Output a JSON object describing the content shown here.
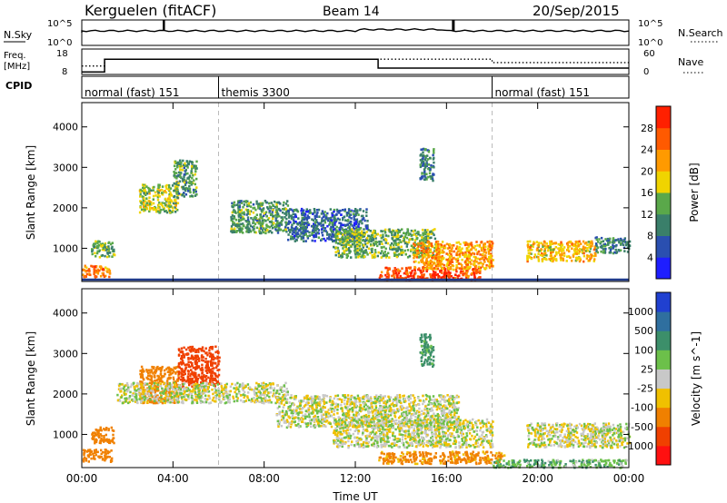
{
  "header": {
    "station": "Kerguelen (fitACF)",
    "beam": "Beam 14",
    "date": "20/Sep/2015"
  },
  "nsky_panel": {
    "left_label": "N.Sky",
    "left_ticks": [
      "10^5",
      "10^0"
    ],
    "right_label": "N.Search",
    "right_ticks": [
      "10^5",
      "10^0"
    ]
  },
  "freq_panel": {
    "left_label_1": "Freq.",
    "left_label_2": "[MHz]",
    "left_ticks": [
      "18",
      "8"
    ],
    "right_label": "Nave",
    "right_ticks": [
      "60",
      "0"
    ]
  },
  "cpid_panel": {
    "label": "CPID",
    "modes": [
      {
        "name": "normal (fast) 151",
        "start_hour": 0
      },
      {
        "name": "themis 3300",
        "start_hour": 6
      },
      {
        "name": "normal (fast) 151",
        "start_hour": 18
      }
    ]
  },
  "power_panel": {
    "ylabel": "Slant Range [km]",
    "yticks": [
      "1000",
      "2000",
      "3000",
      "4000"
    ],
    "colorbar_label": "Power [dB]",
    "colorbar_ticks": [
      "4",
      "8",
      "12",
      "16",
      "20",
      "24",
      "28"
    ],
    "colorbar_colors": [
      "#1e1eff",
      "#2a4fb0",
      "#3a7f6a",
      "#5aa84a",
      "#f0d400",
      "#ff9a00",
      "#ff5a00",
      "#ff2000"
    ]
  },
  "velocity_panel": {
    "ylabel": "Slant Range [km]",
    "yticks": [
      "1000",
      "2000",
      "3000",
      "4000"
    ],
    "colorbar_label": "Velocity [m s^-1]",
    "colorbar_ticks": [
      "1000",
      "500",
      "100",
      "25",
      "-25",
      "-100",
      "-500",
      "-1000"
    ],
    "colorbar_colors": [
      "#2040d0",
      "#2f6f9f",
      "#3c8f6a",
      "#6cc04a",
      "#c8c8c8",
      "#f0c000",
      "#f08000",
      "#f04000",
      "#ff1010"
    ]
  },
  "time_axis": {
    "ticks": [
      "00:00",
      "04:00",
      "08:00",
      "12:00",
      "16:00",
      "20:00",
      "00:00"
    ],
    "label": "Time UT"
  },
  "chart_data": [
    {
      "type": "line",
      "title": "N.Sky / N.Search",
      "x_range_hours": [
        0,
        24
      ],
      "spikes_hours": [
        3.6,
        16.3
      ],
      "baseline": "near 10^5"
    },
    {
      "type": "line",
      "title": "Freq. / Nave",
      "x_range_hours": [
        0,
        24
      ],
      "freq_steps": [
        {
          "from_hour": 0,
          "to_hour": 1,
          "freq_mhz": 9
        },
        {
          "from_hour": 1,
          "to_hour": 13,
          "freq_mhz": 14
        },
        {
          "from_hour": 13,
          "to_hour": 24,
          "freq_mhz": 10.5
        }
      ],
      "nave_dotted": [
        {
          "from_hour": 0,
          "to_hour": 1,
          "nave": 20
        },
        {
          "from_hour": 1,
          "to_hour": 18,
          "nave": 36
        },
        {
          "from_hour": 18,
          "to_hour": 24,
          "nave": 28
        }
      ]
    },
    {
      "type": "heatmap",
      "title": "Power",
      "xlabel": "Time UT",
      "ylabel": "Slant Range [km]",
      "x_range_hours": [
        0,
        24
      ],
      "ylim_km": [
        180,
        4600
      ],
      "regions_db": [
        {
          "x_hours": [
            0,
            1.2
          ],
          "y_km": [
            300,
            600
          ],
          "power_db": 24
        },
        {
          "x_hours": [
            0.4,
            1.4
          ],
          "y_km": [
            800,
            1200
          ],
          "power_db": 14
        },
        {
          "x_hours": [
            2.5,
            4.2
          ],
          "y_km": [
            1900,
            2600
          ],
          "power_db": 16
        },
        {
          "x_hours": [
            4.0,
            5.0
          ],
          "y_km": [
            2300,
            3200
          ],
          "power_db": 12
        },
        {
          "x_hours": [
            6.5,
            9.0
          ],
          "y_km": [
            1400,
            2200
          ],
          "power_db": 12
        },
        {
          "x_hours": [
            9.0,
            12.5
          ],
          "y_km": [
            1200,
            2000
          ],
          "power_db": 8
        },
        {
          "x_hours": [
            11.0,
            15.5
          ],
          "y_km": [
            800,
            1500
          ],
          "power_db": 14
        },
        {
          "x_hours": [
            13.0,
            17.5
          ],
          "y_km": [
            250,
            550
          ],
          "power_db": 28
        },
        {
          "x_hours": [
            14.5,
            18.0
          ],
          "y_km": [
            500,
            1200
          ],
          "power_db": 22
        },
        {
          "x_hours": [
            14.8,
            15.4
          ],
          "y_km": [
            2700,
            3500
          ],
          "power_db": 10
        },
        {
          "x_hours": [
            19.5,
            22.5
          ],
          "y_km": [
            700,
            1200
          ],
          "power_db": 20
        },
        {
          "x_hours": [
            22.5,
            24.0
          ],
          "y_km": [
            900,
            1300
          ],
          "power_db": 10
        }
      ]
    },
    {
      "type": "heatmap",
      "title": "Velocity",
      "xlabel": "Time UT",
      "ylabel": "Slant Range [km]",
      "x_range_hours": [
        0,
        24
      ],
      "ylim_km": [
        180,
        4600
      ],
      "regions_ms": [
        {
          "x_hours": [
            0,
            1.3
          ],
          "y_km": [
            350,
            650
          ],
          "velocity": -300
        },
        {
          "x_hours": [
            0.4,
            1.4
          ],
          "y_km": [
            800,
            1200
          ],
          "velocity": -200
        },
        {
          "x_hours": [
            2.5,
            4.2
          ],
          "y_km": [
            1800,
            2700
          ],
          "velocity": -300
        },
        {
          "x_hours": [
            4.2,
            6.0
          ],
          "y_km": [
            2200,
            3200
          ],
          "velocity": -600
        },
        {
          "x_hours": [
            1.5,
            9.0
          ],
          "y_km": [
            1800,
            2300
          ],
          "velocity": 0
        },
        {
          "x_hours": [
            8.5,
            16.5
          ],
          "y_km": [
            1200,
            2000
          ],
          "velocity": 0
        },
        {
          "x_hours": [
            11.0,
            18.0
          ],
          "y_km": [
            700,
            1400
          ],
          "velocity": 0
        },
        {
          "x_hours": [
            13.0,
            18.5
          ],
          "y_km": [
            300,
            600
          ],
          "velocity": -150
        },
        {
          "x_hours": [
            14.8,
            15.4
          ],
          "y_km": [
            2700,
            3500
          ],
          "velocity": 150
        },
        {
          "x_hours": [
            19.5,
            24.0
          ],
          "y_km": [
            700,
            1300
          ],
          "velocity": 0
        },
        {
          "x_hours": [
            18.0,
            24.0
          ],
          "y_km": [
            200,
            400
          ],
          "velocity": 80
        }
      ]
    }
  ]
}
